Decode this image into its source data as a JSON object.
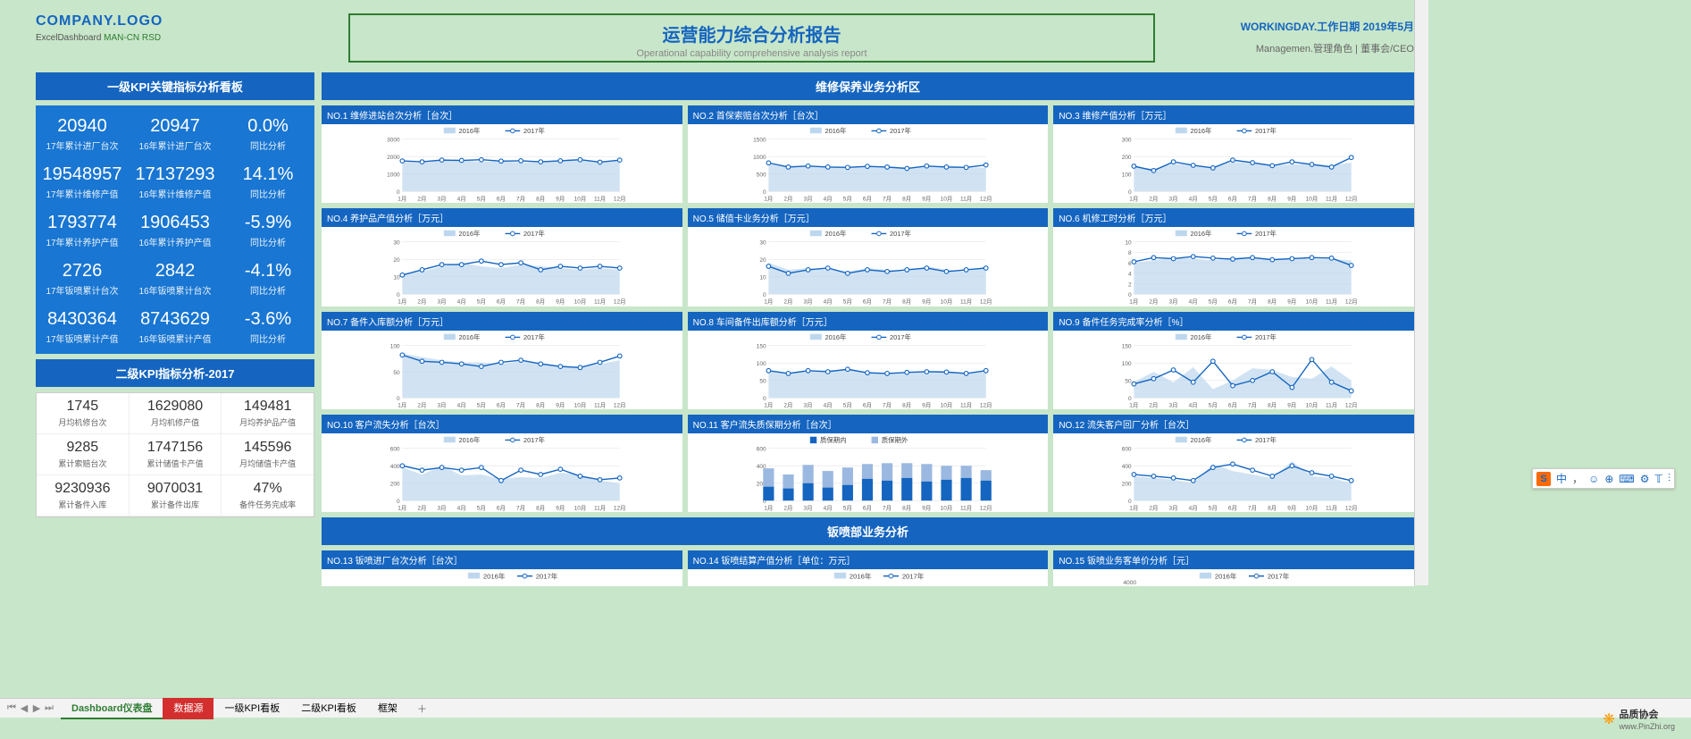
{
  "header": {
    "logo": "COMPANY.LOGO",
    "logo_sub_a": "ExcelDashboard ",
    "logo_sub_b": "MAN-CN RSD",
    "title": "运营能力综合分析报告",
    "subtitle": "Operational capability comprehensive analysis report",
    "workday_label": "WORKINGDAY.工作日期",
    "workday_value": "2019年5月",
    "role_label": "Managemen.管理角色",
    "role_value": "董事会/CEO"
  },
  "left": {
    "kpi1_title": "一级KPI关键指标分析看板",
    "kpi1_rows": [
      {
        "c1v": "20940",
        "c1l": "17年累计进厂台次",
        "c2v": "20947",
        "c2l": "16年累计进厂台次",
        "c3v": "0.0%",
        "c3l": "同比分析"
      },
      {
        "c1v": "19548957",
        "c1l": "17年累计维修产值",
        "c2v": "17137293",
        "c2l": "16年累计维修产值",
        "c3v": "14.1%",
        "c3l": "同比分析"
      },
      {
        "c1v": "1793774",
        "c1l": "17年累计养护产值",
        "c2v": "1906453",
        "c2l": "16年累计养护产值",
        "c3v": "-5.9%",
        "c3l": "同比分析"
      },
      {
        "c1v": "2726",
        "c1l": "17年钣喷累计台次",
        "c2v": "2842",
        "c2l": "16年钣喷累计台次",
        "c3v": "-4.1%",
        "c3l": "同比分析"
      },
      {
        "c1v": "8430364",
        "c1l": "17年钣喷累计产值",
        "c2v": "8743629",
        "c2l": "16年钣喷累计产值",
        "c3v": "-3.6%",
        "c3l": "同比分析"
      }
    ],
    "kpi2_title": "二级KPI指标分析-2017",
    "kpi2_rows": [
      {
        "c1v": "1745",
        "c1l": "月均机修台次",
        "c2v": "1629080",
        "c2l": "月均机修产值",
        "c3v": "149481",
        "c3l": "月均养护品产值"
      },
      {
        "c1v": "9285",
        "c1l": "累计索赔台次",
        "c2v": "1747156",
        "c2l": "累计储值卡产值",
        "c3v": "145596",
        "c3l": "月均储值卡产值"
      },
      {
        "c1v": "9230936",
        "c1l": "累计备件入库",
        "c2v": "9070031",
        "c2l": "累计备件出库",
        "c3v": "47%",
        "c3l": "备件任务完成率"
      }
    ]
  },
  "right": {
    "section1_title": "维修保养业务分析区",
    "section2_title": "钣喷部业务分析",
    "legend_2016": "2016年",
    "legend_2017": "2017年",
    "legend_in": "质保期内",
    "legend_out": "质保期外",
    "months": [
      "1月",
      "2月",
      "3月",
      "4月",
      "5月",
      "6月",
      "7月",
      "8月",
      "9月",
      "10月",
      "11月",
      "12月"
    ],
    "charts": [
      {
        "id": "c1",
        "title": "NO.1 维修进站台次分析［台次］",
        "ymax": 3000,
        "step": 1000,
        "type": "line",
        "s1": [
          1700,
          1650,
          1750,
          1800,
          1700,
          1750,
          1650,
          1720,
          1800,
          1760,
          1680,
          1750
        ],
        "s2": [
          1750,
          1700,
          1800,
          1780,
          1820,
          1740,
          1760,
          1700,
          1760,
          1820,
          1680,
          1800
        ]
      },
      {
        "id": "c2",
        "title": "NO.2 首保索赔台次分析［台次］",
        "ymax": 1500,
        "step": 500,
        "type": "line",
        "s1": [
          800,
          750,
          700,
          720,
          680,
          700,
          720,
          680,
          700,
          750,
          700,
          680
        ],
        "s2": [
          820,
          700,
          730,
          700,
          690,
          720,
          700,
          660,
          730,
          700,
          690,
          760
        ]
      },
      {
        "id": "c3",
        "title": "NO.3 维修产值分析［万元］",
        "ymax": 300,
        "step": 100,
        "type": "line",
        "s1": [
          140,
          130,
          160,
          150,
          140,
          170,
          160,
          150,
          155,
          160,
          150,
          165
        ],
        "s2": [
          145,
          120,
          170,
          150,
          135,
          180,
          165,
          148,
          170,
          155,
          140,
          195
        ]
      },
      {
        "id": "c4",
        "title": "NO.4 养护品产值分析［万元］",
        "ymax": 30,
        "step": 10,
        "type": "line",
        "s1": [
          12,
          13,
          16,
          18,
          16,
          15,
          17,
          16,
          15,
          14,
          15,
          14
        ],
        "s2": [
          11,
          14,
          17,
          17,
          19,
          17,
          18,
          14,
          16,
          15,
          16,
          15
        ]
      },
      {
        "id": "c5",
        "title": "NO.5 储值卡业务分析［万元］",
        "ymax": 30,
        "step": 10,
        "type": "line",
        "s1": [
          18,
          14,
          15,
          14,
          13,
          15,
          14,
          13,
          16,
          14,
          13,
          16
        ],
        "s2": [
          16,
          12,
          14,
          15,
          12,
          14,
          13,
          14,
          15,
          13,
          14,
          15
        ]
      },
      {
        "id": "c6",
        "title": "NO.6 机修工时分析［万元］",
        "ymax": 10,
        "step": 2,
        "type": "line",
        "s1": [
          6,
          6.5,
          7,
          6.8,
          6.5,
          7,
          7.2,
          6.5,
          7,
          6.8,
          6.7,
          6.5
        ],
        "s2": [
          6.2,
          7,
          6.8,
          7.2,
          6.9,
          6.7,
          7,
          6.6,
          6.8,
          7,
          6.9,
          5.5
        ]
      },
      {
        "id": "c7",
        "title": "NO.7 备件入库额分析［万元］",
        "ymax": 100,
        "step": 50,
        "type": "line",
        "s1": [
          85,
          78,
          72,
          68,
          68,
          65,
          70,
          67,
          62,
          60,
          65,
          72
        ],
        "s2": [
          82,
          70,
          68,
          65,
          60,
          68,
          72,
          65,
          60,
          58,
          68,
          80
        ]
      },
      {
        "id": "c8",
        "title": "NO.8 车间备件出库额分析［万元］",
        "ymax": 150,
        "step": 50,
        "type": "line",
        "s1": [
          80,
          72,
          75,
          80,
          80,
          75,
          72,
          70,
          78,
          76,
          72,
          74
        ],
        "s2": [
          78,
          70,
          78,
          75,
          82,
          72,
          70,
          73,
          75,
          74,
          70,
          78
        ]
      },
      {
        "id": "c9",
        "title": "NO.9 备件任务完成率分析［%］",
        "ymax": 150,
        "step": 50,
        "type": "line",
        "s1": [
          45,
          75,
          45,
          88,
          25,
          50,
          85,
          80,
          60,
          55,
          90,
          50
        ],
        "s2": [
          40,
          55,
          80,
          45,
          105,
          35,
          50,
          75,
          30,
          110,
          45,
          20
        ]
      },
      {
        "id": "c10",
        "title": "NO.10 客户流失分析［台次］",
        "ymax": 600,
        "step": 200,
        "type": "line",
        "s1": [
          380,
          300,
          400,
          290,
          300,
          250,
          270,
          260,
          320,
          300,
          230,
          200
        ],
        "s2": [
          400,
          350,
          380,
          350,
          380,
          230,
          350,
          300,
          360,
          280,
          240,
          260
        ]
      },
      {
        "id": "c11",
        "title": "NO.11 客户流失质保期分析［台次］",
        "ymax": 600,
        "step": 200,
        "type": "bar",
        "s1": [
          160,
          140,
          200,
          150,
          180,
          250,
          230,
          260,
          220,
          240,
          260,
          230
        ],
        "s2": [
          210,
          160,
          210,
          190,
          200,
          170,
          200,
          170,
          200,
          160,
          140,
          120
        ]
      },
      {
        "id": "c12",
        "title": "NO.12 流失客户回厂分析［台次］",
        "ymax": 600,
        "step": 200,
        "type": "line",
        "s1": [
          280,
          260,
          240,
          200,
          420,
          340,
          300,
          260,
          450,
          280,
          260,
          200
        ],
        "s2": [
          300,
          280,
          260,
          230,
          380,
          420,
          350,
          280,
          400,
          320,
          280,
          230
        ]
      },
      {
        "id": "c13",
        "title": "NO.13 钣喷进厂台次分析［台次］",
        "ymax": 0,
        "step": 0,
        "type": "titleonly"
      },
      {
        "id": "c14",
        "title": "NO.14 钣喷结算产值分析［单位：万元］",
        "ymax": 0,
        "step": 0,
        "type": "titleonly"
      },
      {
        "id": "c15",
        "title": "NO.15 钣喷业务客单价分析［元］",
        "ymax": 4000,
        "step": 2000,
        "type": "titleonly"
      }
    ],
    "colors": {
      "area": "#bdd7ee",
      "line": "#1565c0",
      "marker_fill": "#ffffff",
      "grid": "#dddddd",
      "bar1": "#1565c0",
      "bar2": "#9bb8e0",
      "axis_text": "#666666"
    }
  },
  "tabs": {
    "items": [
      "Dashboard仪表盘",
      "数据源",
      "一级KPI看板",
      "二级KPI看板",
      "框架"
    ],
    "active": 0,
    "red": 1,
    "add": "＋"
  },
  "ime": {
    "s": "S",
    "items": [
      "中",
      "●",
      "☺",
      "⊕",
      "⌨",
      "⚙",
      "𝕋",
      "⫶"
    ]
  },
  "footer": {
    "brand": "品质协会",
    "url": "www.PinZhi.org"
  }
}
